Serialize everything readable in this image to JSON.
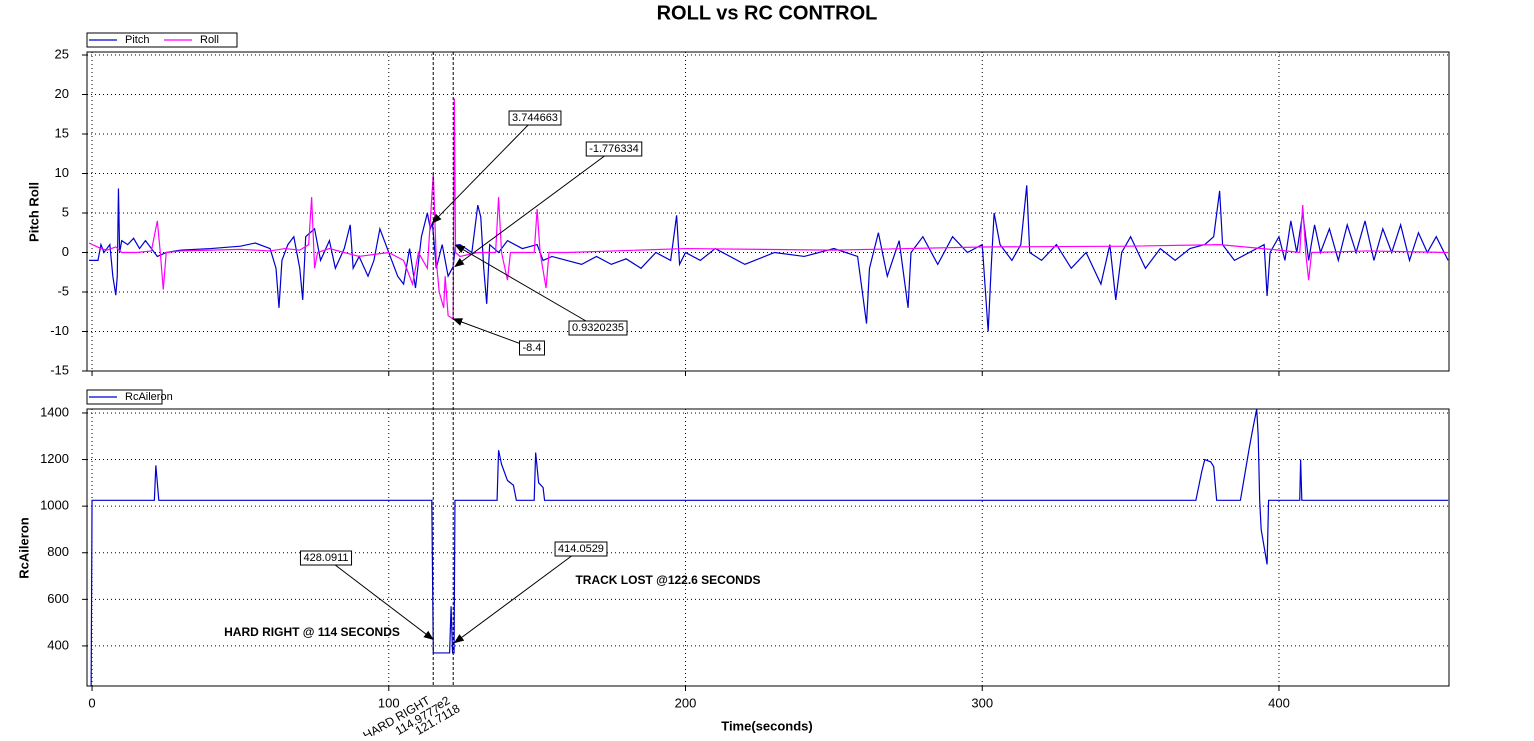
{
  "chart_data": [
    {
      "type": "line",
      "title": "ROLL vs RC CONTROL",
      "y_label": "Pitch Roll",
      "ylim": [
        -15,
        25
      ],
      "yticks": [
        -15,
        -10,
        -5,
        0,
        5,
        10,
        15,
        20,
        25
      ],
      "grid": true,
      "legend": "top-left",
      "series": [
        {
          "name": "Pitch",
          "color": "#0000d0",
          "x": [
            -1,
            2,
            3,
            4,
            5,
            6,
            7,
            8,
            8.5,
            8.9,
            9.3,
            10,
            12,
            14,
            16,
            18,
            20,
            22,
            25,
            30,
            40,
            50,
            55,
            60,
            62,
            63,
            64,
            66,
            68,
            70,
            71,
            72,
            75,
            77,
            80,
            82,
            85,
            87,
            88,
            90,
            93,
            95,
            97,
            99,
            101,
            103,
            105,
            107,
            109,
            111,
            113,
            114,
            114.7,
            116,
            118,
            120,
            121.7,
            122.5,
            124,
            128,
            130,
            131,
            132,
            133,
            134,
            137,
            140,
            145,
            150,
            152,
            155,
            160,
            165,
            170,
            175,
            180,
            185,
            190,
            195,
            197,
            198,
            200,
            205,
            210,
            220,
            230,
            240,
            250,
            258,
            261,
            262,
            265,
            268,
            272,
            275,
            276,
            280,
            285,
            290,
            295,
            300,
            302,
            303,
            304,
            306,
            310,
            313,
            315,
            316,
            320,
            325,
            330,
            335,
            340,
            343,
            345,
            347,
            350,
            355,
            360,
            365,
            370,
            375,
            378,
            380,
            381,
            385,
            390,
            395,
            396,
            397,
            400,
            402,
            404,
            406,
            408,
            410,
            412,
            414,
            417,
            420,
            423,
            426,
            429,
            432,
            435,
            438,
            441,
            444,
            447,
            450,
            453,
            457
          ],
          "values": [
            -1,
            -1,
            1,
            0,
            0.5,
            1,
            -3,
            -5.4,
            -3,
            8.1,
            0,
            1.5,
            1,
            1.8,
            0.5,
            1.5,
            0.5,
            -0.5,
            0,
            0.3,
            0.5,
            0.8,
            1.2,
            0.5,
            -2,
            -7,
            -1,
            1,
            2,
            -2,
            -6,
            2,
            3,
            -1,
            1.5,
            -2,
            0.5,
            3.5,
            -2,
            -0.5,
            -3,
            -1,
            3,
            1,
            -1,
            -3,
            -4,
            0.5,
            -4.5,
            2,
            5,
            3,
            3.744663,
            -2,
            1,
            -3,
            -1.776334,
            0.932,
            1,
            0,
            6,
            4.5,
            -2,
            -6.5,
            1,
            0,
            1.5,
            0.5,
            1,
            -1,
            -0.5,
            -1,
            -1.5,
            -0.5,
            -1.5,
            -0.8,
            -2,
            0,
            -1,
            4.7,
            -1.5,
            0,
            -1,
            0.5,
            -1.5,
            0,
            -0.5,
            0.5,
            -0.5,
            -9,
            -2,
            2.5,
            -3,
            1.5,
            -7,
            0,
            2,
            -1.5,
            2,
            0,
            1,
            -10,
            -2,
            5,
            1,
            -1,
            1,
            8.5,
            0,
            -1,
            1,
            -2,
            0,
            -4,
            1,
            -6,
            0,
            2,
            -2,
            0.5,
            -1,
            0.5,
            1,
            2,
            7.8,
            1,
            -1,
            0,
            1,
            -5.5,
            0,
            2,
            -1,
            4,
            0,
            5,
            -1,
            3.5,
            0,
            3,
            -1,
            3.5,
            0,
            4,
            -1,
            3,
            0,
            3.5,
            -1,
            2.5,
            0,
            2,
            -1
          ]
        },
        {
          "name": "Roll",
          "color": "#ff00ff",
          "x": [
            -1,
            3,
            5,
            8,
            10,
            15,
            20,
            22,
            23,
            24,
            25,
            30,
            50,
            60,
            65,
            70,
            73,
            74,
            75,
            76,
            80,
            90,
            100,
            105,
            108,
            110,
            113,
            115,
            116,
            117,
            118.5,
            119,
            120,
            121.7,
            122.1,
            122.5,
            124,
            130,
            136,
            137,
            138,
            140,
            141,
            149,
            150,
            151,
            153,
            154,
            160,
            200,
            250,
            300,
            350,
            380,
            400,
            407,
            408,
            409,
            410,
            411,
            430,
            457
          ],
          "values": [
            1.2,
            0.5,
            0.3,
            0.7,
            0,
            0,
            0.2,
            4,
            0,
            -4.7,
            0,
            0.2,
            0.4,
            0.2,
            0.5,
            0.3,
            1,
            7,
            -2,
            0,
            0.5,
            -0.5,
            0,
            -1,
            -4,
            0,
            -2,
            10,
            -1,
            -5,
            -7,
            -3,
            -8,
            -8.4,
            19.5,
            0,
            -0.5,
            0,
            0,
            7,
            0,
            -3.5,
            0,
            0,
            5.5,
            0,
            -4.5,
            0,
            0,
            0.5,
            0.3,
            0.7,
            0.8,
            1,
            0.3,
            0,
            6,
            0,
            -3.5,
            0,
            0.2,
            0
          ]
        }
      ],
      "annotations": [
        {
          "x": 114.7,
          "y": 3.744663
        },
        {
          "x": 122.3,
          "y": -1.776334
        },
        {
          "x": 122.5,
          "y": 0.9320235
        },
        {
          "x": 121.7,
          "y": -8.4
        }
      ]
    },
    {
      "type": "line",
      "y_label": "RcAileron",
      "x_label": "Time(seconds)",
      "xlim": [
        -1.7,
        457.3
      ],
      "xticks": [
        0,
        100,
        200,
        300,
        400
      ],
      "ylim": [
        228,
        1417
      ],
      "yticks": [
        400,
        600,
        800,
        1000,
        1200,
        1400
      ],
      "grid": true,
      "legend": "top-left",
      "series": [
        {
          "name": "RcAileron",
          "color": "#0000d0",
          "x": [
            -0.3,
            0,
            21,
            21.5,
            22.5,
            114.5,
            115,
            120.5,
            121,
            121.5,
            122,
            122.3,
            136.5,
            137,
            138,
            140,
            142,
            143,
            149,
            149.5,
            150.5,
            152,
            152.5,
            372,
            374,
            375,
            377,
            378,
            379,
            387,
            388,
            390,
            391,
            392.5,
            393,
            393.5,
            394,
            396,
            396.5,
            407,
            407.3,
            407.7,
            457
          ],
          "values": [
            230,
            1025,
            1025,
            1175,
            1025,
            1025,
            370,
            370,
            570,
            370,
            370,
            1025,
            1025,
            1240,
            1180,
            1110,
            1090,
            1025,
            1025,
            1230,
            1100,
            1080,
            1025,
            1025,
            1150,
            1200,
            1190,
            1170,
            1025,
            1025,
            1100,
            1250,
            1320,
            1417,
            1300,
            1025,
            900,
            750,
            1025,
            1025,
            1200,
            1025,
            1025
          ]
        }
      ],
      "annotations": [
        {
          "x": 114.9,
          "y": 428.0911
        },
        {
          "x": 122.2,
          "y": 414.0529
        }
      ],
      "notes": [
        "HARD RIGHT @ 114 SECONDS",
        "TRACK LOST @122.6 SECONDS"
      ],
      "markers": [
        {
          "x": 114.9777,
          "name": "HARD RIGHT"
        },
        {
          "x": 121.7118,
          "name": "e2"
        }
      ]
    }
  ]
}
